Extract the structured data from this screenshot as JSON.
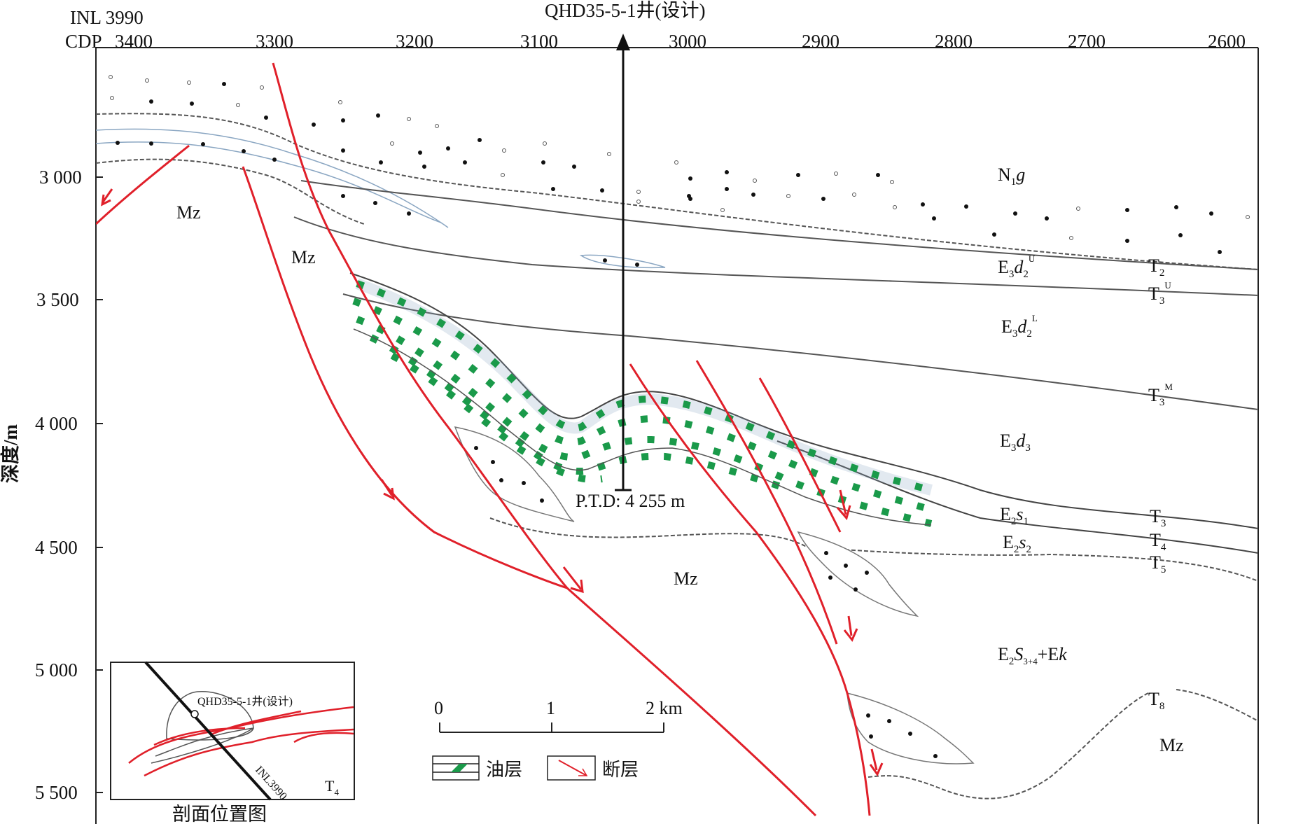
{
  "header": {
    "inl": "INL 3990",
    "cdp_prefix": "CDP",
    "well_label": "QHD35-5-1井(设计)",
    "ptd_label": "P.T.D: 4 255 m"
  },
  "x_axis": {
    "ticks": [
      "3400",
      "3300",
      "3200",
      "3100",
      "3000",
      "2900",
      "2800",
      "2700",
      "2600"
    ]
  },
  "y_axis": {
    "title": "深度/m",
    "ticks": [
      "3 000",
      "3 500",
      "4 000",
      "4 500",
      "5 000",
      "5 500"
    ]
  },
  "formations": [
    {
      "name": "N1g",
      "main": "N",
      "sub": "1",
      "italic": "g"
    },
    {
      "name": "E3d2U",
      "main": "E",
      "sub": "3",
      "italic": "d",
      "sub2": "2",
      "sup": "U"
    },
    {
      "name": "E3d2L",
      "main": "E",
      "sub": "3",
      "italic": "d",
      "sub2": "2",
      "sup": "L"
    },
    {
      "name": "E3d3",
      "main": "E",
      "sub": "3",
      "italic": "d",
      "sub2": "3"
    },
    {
      "name": "E2s1",
      "main": "E",
      "sub": "2",
      "italic": "s",
      "sub2": "1"
    },
    {
      "name": "E2s2",
      "main": "E",
      "sub": "2",
      "italic": "s",
      "sub2": "2"
    },
    {
      "name": "E2S3+4+Ek",
      "main": "E",
      "sub": "2",
      "italic": "S",
      "sub2": "3+4",
      "tail": "+E",
      "tail_italic": "k"
    }
  ],
  "horizons": [
    {
      "name": "T2",
      "main": "T",
      "sub": "2"
    },
    {
      "name": "T3U",
      "main": "T",
      "sub": "3",
      "sup": "U"
    },
    {
      "name": "T3M",
      "main": "T",
      "sub": "3",
      "sup": "M"
    },
    {
      "name": "T3",
      "main": "T",
      "sub": "3"
    },
    {
      "name": "T4",
      "main": "T",
      "sub": "4"
    },
    {
      "name": "T5",
      "main": "T",
      "sub": "5"
    },
    {
      "name": "T8",
      "main": "T",
      "sub": "8"
    }
  ],
  "basement_label": "Mz",
  "scale_bar": {
    "ticks": [
      "0",
      "1",
      "2 km"
    ]
  },
  "legend": {
    "oil_layer": "油层",
    "fault": "断层"
  },
  "inset": {
    "title": "剖面位置图",
    "well": "QHD35-5-1井(设计)",
    "line": "INL3990",
    "horizon_main": "T",
    "horizon_sub": "4"
  },
  "colors": {
    "fault": "#e0202a",
    "oil": "#1a9a4a",
    "horizon": "#555555",
    "sand_fill": "#ffffff",
    "background": "#ffffff"
  }
}
